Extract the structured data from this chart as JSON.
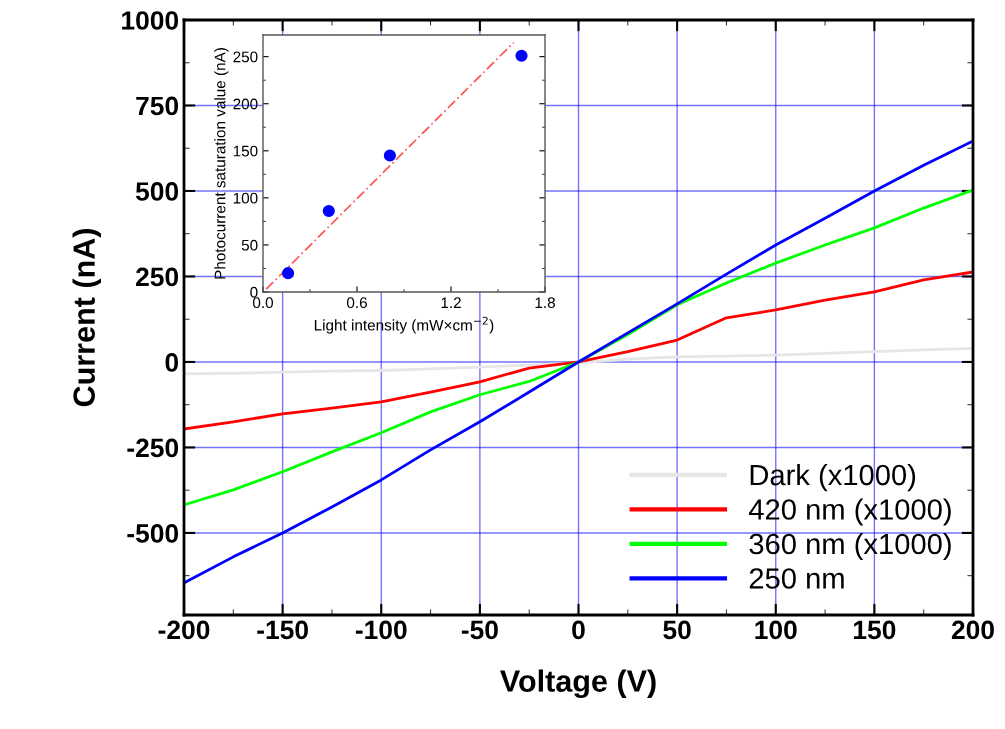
{
  "chart_data": [
    {
      "type": "line",
      "xlabel": "Voltage (V)",
      "ylabel": "Current (nA)",
      "xlim": [
        -200,
        200
      ],
      "ylim": [
        -740,
        1000
      ],
      "xticks": [
        -200,
        -150,
        -100,
        -50,
        0,
        50,
        100,
        150,
        200
      ],
      "yticks": [
        -500,
        -250,
        0,
        250,
        500,
        750,
        1000
      ],
      "grid": true,
      "legend": "bottom right",
      "line_style": "solid",
      "x": [
        -200,
        -175,
        -150,
        -125,
        -100,
        -75,
        -50,
        -25,
        0,
        25,
        50,
        75,
        100,
        125,
        150,
        175,
        200
      ],
      "series": [
        {
          "name": "Dark (x1000)",
          "color": "#e6e6e6",
          "values": [
            -35,
            -33,
            -30,
            -27,
            -25,
            -20,
            -15,
            -9,
            -3,
            8,
            15,
            17,
            20,
            25,
            30,
            35,
            40
          ]
        },
        {
          "name": "420 nm (x1000)",
          "color": "#ff0000",
          "values": [
            -196,
            -175,
            -152,
            -135,
            -117,
            -88,
            -58,
            -18,
            0,
            30,
            64,
            129,
            152,
            181,
            205,
            240,
            263
          ]
        },
        {
          "name": "360 nm (x1000)",
          "color": "#00ff00",
          "values": [
            -418,
            -374,
            -321,
            -263,
            -207,
            -146,
            -96,
            -57,
            0,
            80,
            167,
            231,
            289,
            342,
            392,
            450,
            503
          ]
        },
        {
          "name": "250 nm",
          "color": "#0000ff",
          "values": [
            -646,
            -570,
            -500,
            -424,
            -345,
            -257,
            -175,
            -88,
            0,
            85,
            170,
            257,
            342,
            420,
            500,
            575,
            646
          ]
        }
      ]
    },
    {
      "type": "scatter",
      "xlabel": "Light intensity (mW×cm$^{−2}$)",
      "ylabel": "Photocurrent saturation value (nA)",
      "xlim": [
        0,
        1.8
      ],
      "ylim": [
        0,
        273
      ],
      "xticks": [
        {
          "value": 0,
          "label": "0.0"
        },
        0.6,
        1.2,
        1.8
      ],
      "yticks": [
        0,
        50,
        100,
        150,
        200,
        250
      ],
      "grid": false,
      "legend": false,
      "marker": "circle",
      "x": [
        0.16,
        0.42,
        0.81,
        1.65
      ],
      "series": [
        {
          "color": "#0000ff",
          "values": [
            20,
            86,
            145,
            251
          ]
        },
        {
          "type": "line",
          "line_style": "dashed",
          "marker": "none",
          "color": "#ff5050",
          "x": [
            0.02,
            1.6
          ],
          "values": [
            3,
            265
          ]
        }
      ]
    }
  ]
}
